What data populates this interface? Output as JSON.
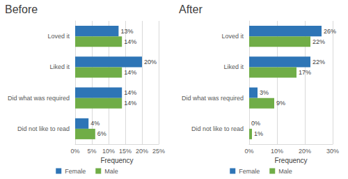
{
  "chart_data": [
    {
      "type": "bar",
      "title": "Before",
      "orientation": "horizontal",
      "categories": [
        "Loved it",
        "Liked it",
        "Did what was required",
        "Did not like to read"
      ],
      "series": [
        {
          "name": "Female",
          "color": "#2e75b6",
          "values": [
            13,
            20,
            14,
            4
          ],
          "value_labels": [
            "13%",
            "20%",
            "14%",
            "4%"
          ]
        },
        {
          "name": "Male",
          "color": "#70ad47",
          "values": [
            14,
            14,
            14,
            6
          ],
          "value_labels": [
            "14%",
            "14%",
            "14%",
            "6%"
          ]
        }
      ],
      "xlabel": "Frequency",
      "xlim": [
        0,
        25
      ],
      "xticks": [
        {
          "value": 0,
          "label": "0%"
        },
        {
          "value": 5,
          "label": "5%"
        },
        {
          "value": 10,
          "label": "10%"
        },
        {
          "value": 15,
          "label": "15%"
        },
        {
          "value": 20,
          "label": "20%"
        },
        {
          "value": 25,
          "label": "25%"
        }
      ],
      "grid": true,
      "legend": "bottom",
      "data_labels": true
    },
    {
      "type": "bar",
      "title": "After",
      "orientation": "horizontal",
      "categories": [
        "Loved it",
        "Liked it",
        "Did what was required",
        "Did not like to read"
      ],
      "series": [
        {
          "name": "Female",
          "color": "#2e75b6",
          "values": [
            26,
            22,
            3,
            0
          ],
          "value_labels": [
            "26%",
            "22%",
            "3%",
            "0%"
          ]
        },
        {
          "name": "Male",
          "color": "#70ad47",
          "values": [
            22,
            17,
            9,
            1
          ],
          "value_labels": [
            "22%",
            "17%",
            "9%",
            "1%"
          ]
        }
      ],
      "xlabel": "Frequency",
      "xlim": [
        0,
        30
      ],
      "xticks": [
        {
          "value": 0,
          "label": "0%"
        },
        {
          "value": 10,
          "label": "10%"
        },
        {
          "value": 20,
          "label": "20%"
        },
        {
          "value": 30,
          "label": "30%"
        }
      ],
      "grid": true,
      "legend": "bottom",
      "data_labels": true
    }
  ]
}
